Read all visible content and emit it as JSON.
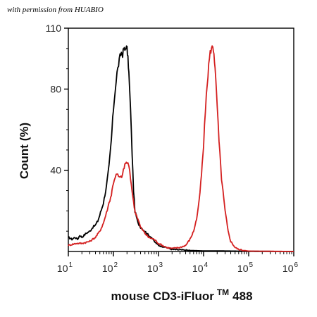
{
  "watermark": "with permission from HUABIO",
  "colors": {
    "isotype": "#000000",
    "stained": "#d42020",
    "axis": "#000000"
  },
  "chart_data": {
    "type": "line",
    "title": "",
    "xlabel_main": "mouse CD3-iFluor",
    "xlabel_sup": "TM",
    "xlabel_tail": "488",
    "ylabel": "Count (%)",
    "xscale": "log",
    "xlim": [
      10,
      1000000
    ],
    "ylim": [
      0,
      110
    ],
    "x_ticks": [
      {
        "base": "10",
        "exp": "1"
      },
      {
        "base": "10",
        "exp": "2"
      },
      {
        "base": "10",
        "exp": "3"
      },
      {
        "base": "10",
        "exp": "4"
      },
      {
        "base": "10",
        "exp": "5"
      },
      {
        "base": "10",
        "exp": "6"
      }
    ],
    "y_ticks": [
      "40",
      "80",
      "110"
    ],
    "y_tick_values": [
      40,
      80,
      110
    ],
    "grid": false,
    "legend": "none",
    "series": [
      {
        "color_key": "isotype",
        "x": [
          10,
          12,
          14,
          16,
          18,
          20,
          25,
          30,
          35,
          40,
          45,
          50,
          60,
          70,
          80,
          90,
          100,
          110,
          120,
          130,
          140,
          150,
          160,
          170,
          180,
          190,
          200,
          210,
          220,
          240,
          260,
          280,
          300,
          350,
          400,
          500,
          600,
          700,
          800,
          1000,
          1500,
          2000,
          3000,
          5000,
          10000,
          20000,
          50000,
          100000,
          1000000
        ],
        "y": [
          7,
          6,
          7,
          6,
          8,
          7,
          9,
          10,
          12,
          13,
          15,
          18,
          24,
          32,
          42,
          55,
          70,
          80,
          88,
          92,
          96,
          98,
          97,
          100,
          99,
          101,
          100,
          95,
          88,
          70,
          48,
          30,
          20,
          14,
          12,
          10,
          8,
          7,
          5,
          3,
          2,
          1,
          0.8,
          0.5,
          0.3,
          0.3,
          0.2,
          0.1,
          0
        ]
      },
      {
        "color_key": "stained",
        "x": [
          10,
          15,
          20,
          30,
          40,
          50,
          60,
          70,
          80,
          90,
          100,
          110,
          120,
          140,
          160,
          180,
          200,
          220,
          240,
          260,
          280,
          300,
          350,
          400,
          500,
          600,
          800,
          1000,
          1500,
          2000,
          3000,
          4000,
          5000,
          6000,
          7000,
          8000,
          9000,
          10000,
          11000,
          12000,
          13000,
          14000,
          15000,
          16000,
          17000,
          18000,
          20000,
          22000,
          25000,
          30000,
          35000,
          40000,
          50000,
          60000,
          80000,
          100000,
          1000000
        ],
        "y": [
          3,
          4,
          4,
          5,
          7,
          10,
          14,
          19,
          24,
          28,
          34,
          37,
          38,
          36,
          38,
          43,
          44,
          42,
          36,
          30,
          24,
          20,
          16,
          12,
          9,
          7,
          6,
          4,
          2,
          1.5,
          2,
          3,
          6,
          10,
          16,
          25,
          38,
          52,
          70,
          82,
          92,
          98,
          100,
          101,
          98,
          90,
          72,
          54,
          36,
          20,
          10,
          5,
          2,
          1,
          0.5,
          0.2,
          0
        ]
      }
    ]
  }
}
